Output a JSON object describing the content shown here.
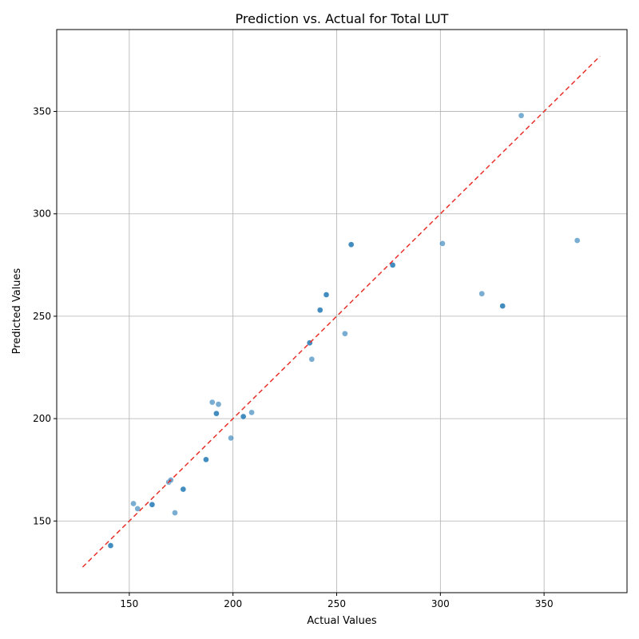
{
  "chart_data": {
    "type": "scatter",
    "title": "Prediction vs. Actual for Total LUT",
    "xlabel": "Actual Values",
    "ylabel": "Predicted Values",
    "xlim": [
      115,
      390
    ],
    "ylim": [
      115,
      390
    ],
    "xticks": [
      150,
      200,
      250,
      300,
      350
    ],
    "yticks": [
      150,
      200,
      250,
      300,
      350
    ],
    "grid": true,
    "point_color": "#1f77b4",
    "reference_line": {
      "style": "dashed",
      "color": "#e8302a",
      "from": [
        127.5,
        127.5
      ],
      "to": [
        377,
        377
      ]
    },
    "points": [
      {
        "x": 141,
        "y": 138
      },
      {
        "x": 141,
        "y": 138
      },
      {
        "x": 152,
        "y": 158.5
      },
      {
        "x": 154,
        "y": 156
      },
      {
        "x": 161,
        "y": 158
      },
      {
        "x": 161,
        "y": 158
      },
      {
        "x": 169,
        "y": 169
      },
      {
        "x": 170,
        "y": 170
      },
      {
        "x": 172,
        "y": 154
      },
      {
        "x": 176,
        "y": 165.5
      },
      {
        "x": 176,
        "y": 165.5
      },
      {
        "x": 187,
        "y": 180
      },
      {
        "x": 187,
        "y": 180
      },
      {
        "x": 190,
        "y": 208
      },
      {
        "x": 192,
        "y": 202.5
      },
      {
        "x": 192,
        "y": 202.5
      },
      {
        "x": 193,
        "y": 207
      },
      {
        "x": 199,
        "y": 190.5
      },
      {
        "x": 205,
        "y": 201
      },
      {
        "x": 205,
        "y": 201
      },
      {
        "x": 209,
        "y": 203
      },
      {
        "x": 237,
        "y": 237
      },
      {
        "x": 237,
        "y": 237
      },
      {
        "x": 238,
        "y": 229
      },
      {
        "x": 242,
        "y": 253
      },
      {
        "x": 242,
        "y": 253
      },
      {
        "x": 245,
        "y": 260.5
      },
      {
        "x": 245,
        "y": 260.5
      },
      {
        "x": 254,
        "y": 241.5
      },
      {
        "x": 257,
        "y": 285
      },
      {
        "x": 257,
        "y": 285
      },
      {
        "x": 277,
        "y": 275
      },
      {
        "x": 277,
        "y": 275
      },
      {
        "x": 301,
        "y": 285.5
      },
      {
        "x": 320,
        "y": 261
      },
      {
        "x": 330,
        "y": 255
      },
      {
        "x": 330,
        "y": 255
      },
      {
        "x": 339,
        "y": 348
      },
      {
        "x": 366,
        "y": 287
      }
    ]
  }
}
